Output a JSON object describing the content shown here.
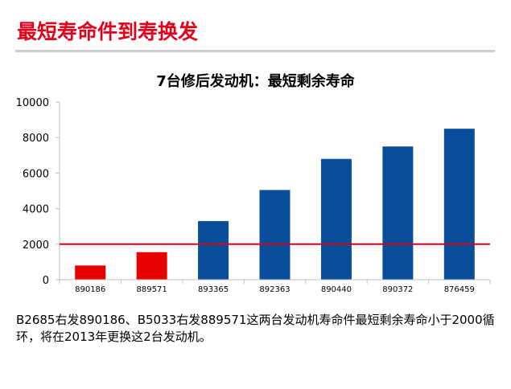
{
  "slide_title": "最短寿命件到寿换发",
  "caption": "B2685右发890186、B5033右发889571这两台发动机寿命件最短剩余寿命小于2000循环，将在2013年更换这2台发动机。",
  "colors": {
    "accent": "#e3001b",
    "bar_red": "#e80000",
    "bar_blue": "#0a4d9a",
    "threshold": "#d4001a"
  },
  "chart_data": {
    "type": "bar",
    "title": "7台修后发动机：最短剩余寿命",
    "categories": [
      "890186",
      "889571",
      "893365",
      "892363",
      "890440",
      "890372",
      "876459"
    ],
    "values": [
      800,
      1550,
      3300,
      5050,
      6800,
      7500,
      8500
    ],
    "bar_colors": [
      "#e80000",
      "#e80000",
      "#0a4d9a",
      "#0a4d9a",
      "#0a4d9a",
      "#0a4d9a",
      "#0a4d9a"
    ],
    "ylim": [
      0,
      10000
    ],
    "yticks": [
      "0",
      "2000",
      "4000",
      "6000",
      "8000",
      "10000"
    ],
    "threshold": 2000,
    "xlabel": "",
    "ylabel": "",
    "grid": false,
    "legend": "none"
  }
}
